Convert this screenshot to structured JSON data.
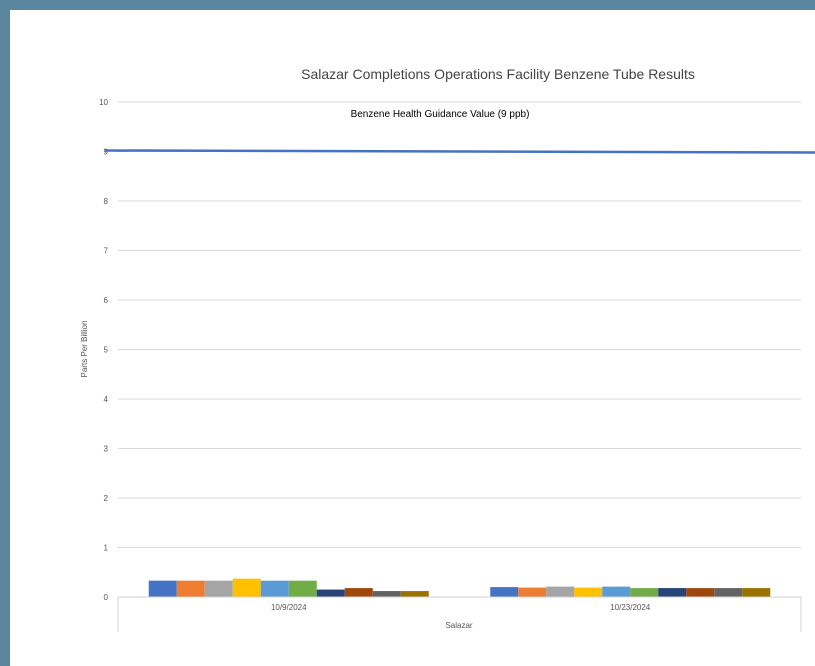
{
  "chart_data": {
    "type": "bar",
    "title": "Salazar Completions Operations Facility Benzene Tube Results",
    "ylabel": "Parts Per Billion",
    "xlabel": "Salazar",
    "ylim": [
      0,
      10
    ],
    "yticks": [
      "0",
      "1",
      "2",
      "3",
      "4",
      "5",
      "6",
      "7",
      "8",
      "9",
      "10"
    ],
    "grid": true,
    "categories": [
      "10/9/2024",
      "10/23/2024"
    ],
    "series": [
      {
        "color": "#4472c4",
        "values": [
          0.33,
          0.2
        ]
      },
      {
        "color": "#ed7d31",
        "values": [
          0.33,
          0.19
        ]
      },
      {
        "color": "#a5a5a5",
        "values": [
          0.33,
          0.21
        ]
      },
      {
        "color": "#ffc000",
        "values": [
          0.37,
          0.19
        ]
      },
      {
        "color": "#5b9bd5",
        "values": [
          0.33,
          0.21
        ]
      },
      {
        "color": "#70ad47",
        "values": [
          0.33,
          0.18
        ]
      },
      {
        "color": "#264478",
        "values": [
          0.15,
          0.18
        ]
      },
      {
        "color": "#9e480e",
        "values": [
          0.18,
          0.18
        ]
      },
      {
        "color": "#636363",
        "values": [
          0.12,
          0.18
        ]
      },
      {
        "color": "#997300",
        "values": [
          0.12,
          0.18
        ]
      }
    ],
    "reference_line": {
      "label": "Benzene Health Guidance Value (9 ppb)",
      "value": 9,
      "color": "#4472c4"
    }
  }
}
